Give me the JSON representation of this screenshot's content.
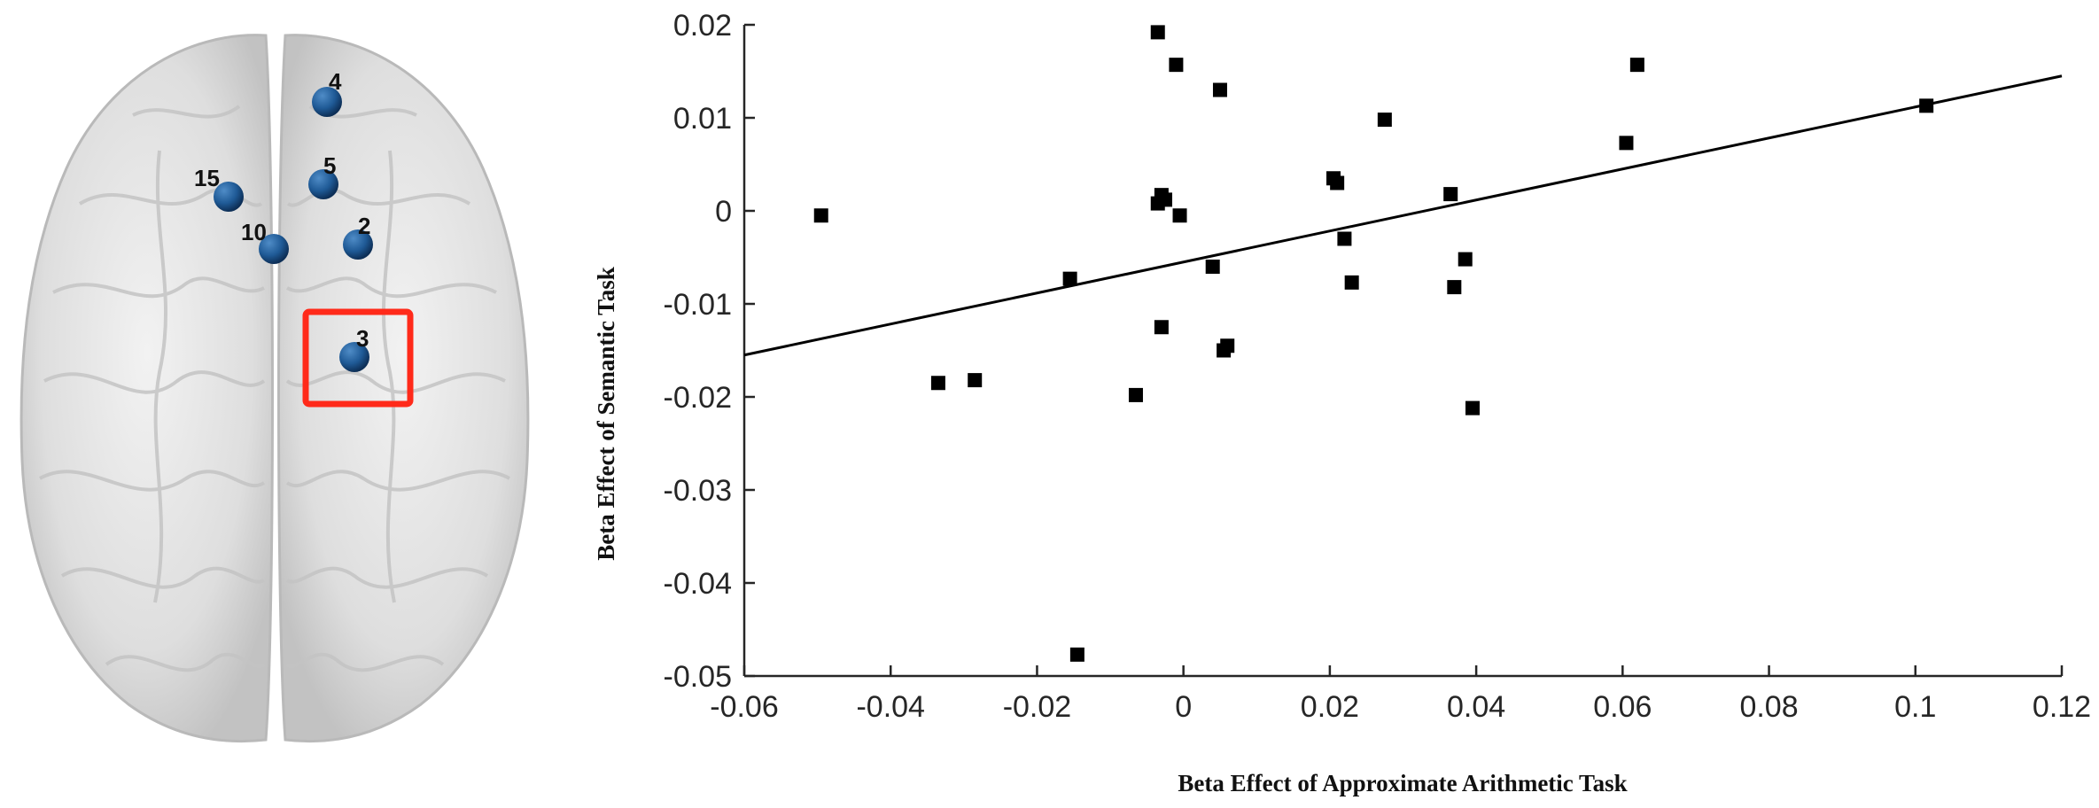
{
  "brain_panel": {
    "nodes": [
      {
        "label": "4"
      },
      {
        "label": "15"
      },
      {
        "label": "5"
      },
      {
        "label": "10"
      },
      {
        "label": "2"
      },
      {
        "label": "3",
        "highlighted": true
      }
    ],
    "node_color": "#1f5a96",
    "highlight_color": "#ff2a1a"
  },
  "chart_data": {
    "type": "scatter",
    "xlabel": "Beta Effect of Approximate Arithmetic Task",
    "ylabel": "Beta Effect of Semantic Task",
    "xlim": [
      -0.06,
      0.12
    ],
    "ylim": [
      -0.05,
      0.02
    ],
    "xticks": [
      "-0.06",
      "-0.04",
      "-0.02",
      "0",
      "0.02",
      "0.04",
      "0.06",
      "0.08",
      "0.1",
      "0.12"
    ],
    "yticks": [
      "0.02",
      "0.01",
      "0",
      "-0.01",
      "-0.02",
      "-0.03",
      "-0.04",
      "-0.05"
    ],
    "points": [
      {
        "x": -0.0495,
        "y": -0.0005
      },
      {
        "x": -0.0335,
        "y": -0.0185
      },
      {
        "x": -0.0285,
        "y": -0.0182
      },
      {
        "x": -0.0155,
        "y": -0.0073
      },
      {
        "x": -0.0145,
        "y": -0.0477
      },
      {
        "x": -0.0065,
        "y": -0.0198
      },
      {
        "x": -0.0035,
        "y": 0.0192
      },
      {
        "x": -0.0035,
        "y": 0.0008
      },
      {
        "x": -0.003,
        "y": 0.0017
      },
      {
        "x": -0.0025,
        "y": 0.0012
      },
      {
        "x": -0.003,
        "y": -0.0125
      },
      {
        "x": -0.001,
        "y": 0.0157
      },
      {
        "x": -0.0005,
        "y": -0.0005
      },
      {
        "x": 0.004,
        "y": -0.006
      },
      {
        "x": 0.005,
        "y": 0.013
      },
      {
        "x": 0.0055,
        "y": -0.015
      },
      {
        "x": 0.006,
        "y": -0.0145
      },
      {
        "x": 0.0205,
        "y": 0.0035
      },
      {
        "x": 0.021,
        "y": 0.003
      },
      {
        "x": 0.022,
        "y": -0.003
      },
      {
        "x": 0.023,
        "y": -0.0077
      },
      {
        "x": 0.0275,
        "y": 0.0098
      },
      {
        "x": 0.0365,
        "y": 0.0018
      },
      {
        "x": 0.037,
        "y": -0.0082
      },
      {
        "x": 0.0385,
        "y": -0.0052
      },
      {
        "x": 0.0395,
        "y": -0.0212
      },
      {
        "x": 0.0605,
        "y": 0.0073
      },
      {
        "x": 0.062,
        "y": 0.0157
      },
      {
        "x": 0.1015,
        "y": 0.0113
      }
    ],
    "fit_line": {
      "x": [
        -0.06,
        0.12
      ],
      "y": [
        -0.0155,
        0.0145
      ]
    },
    "marker": "square",
    "marker_color": "#000000",
    "grid": false,
    "legend": false
  }
}
